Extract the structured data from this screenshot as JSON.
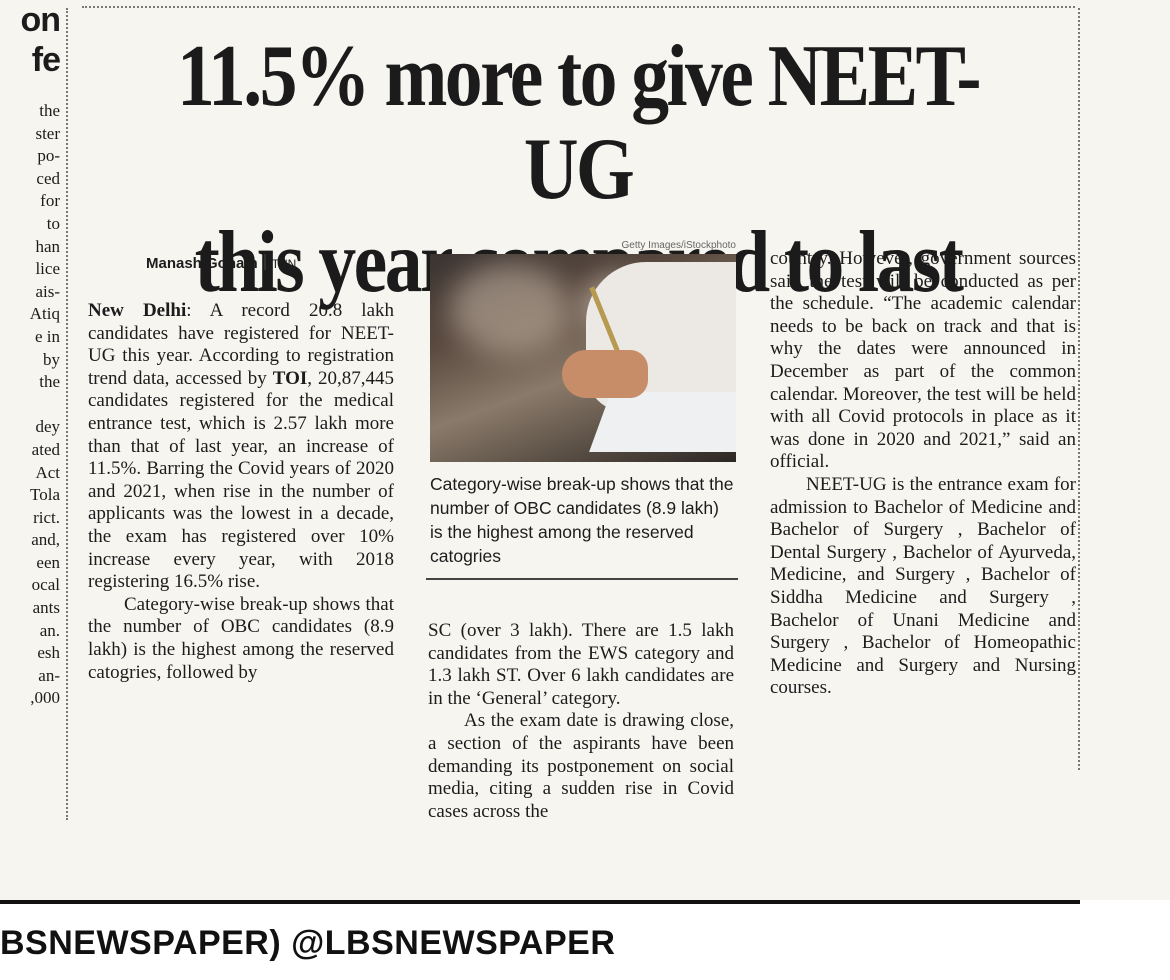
{
  "headline": {
    "line1": "11.5% more to give NEET-UG",
    "line2": "this year compared to last"
  },
  "byline": {
    "author": "Manash Gohain",
    "agency": "TNN"
  },
  "photo": {
    "credit": "Getty Images/iStockphoto"
  },
  "caption": "Category-wise break-up shows that the number of OBC candidates (8.9 lakh) is the highest among the reserved catogries",
  "left_strip": {
    "headline_fragments": [
      "on",
      "fe"
    ],
    "lines": [
      "the",
      "ster",
      "po-",
      "ced",
      "for",
      "to",
      "han",
      "lice",
      "ais-",
      "Atiq",
      "e in",
      "by",
      "the",
      "",
      "dey",
      "ated",
      "Act",
      "Tola",
      "rict.",
      "and,",
      "een",
      "ocal",
      "ants",
      "an.",
      "esh",
      "an-",
      ",000"
    ]
  },
  "body": {
    "col1": {
      "dateline": "New Delhi",
      "para1": ": A record 20.8 lakh candidates have registered for NEET-UG this year. According to registration trend data, accessed by",
      "source": "TOI",
      "para1b": ", 20,87,445 candidates registered for the medical entrance test, which is 2.57 lakh more than that of last year, an increase of 11.5%. Barring the Covid years of 2020 and 2021, when rise in the number of applicants was the lowest in a decade, the exam has registered over 10% increase every year, with 2018 registering 16.5% rise.",
      "para2": "Category-wise break-up shows that the number of OBC candidates (8.9 lakh) is the highest among the reserved catogries, followed by"
    },
    "col2": {
      "para1": "SC (over 3 lakh). There are 1.5 lakh candidates from the EWS category and 1.3 lakh ST. Over 6 lakh candidates are in the ‘General’ category.",
      "para2": "As the exam date is drawing close, a section of the aspirants have been demanding its postponement on social media, citing a sudden rise in Covid cases across the"
    },
    "col3": {
      "para1": "country. However, government sources said the test will be conducted as per the schedule. “The academic calendar needs to be back on track and that is why the dates were announced in December as part of the common calendar. Moreover, the test will be held with all Covid protocols in place as it was done in 2020 and 2021,” said an official.",
      "para2": "NEET-UG is the entrance exam for admission to Bachelor of Medicine and Bachelor of Surgery , Bachelor of Dental Surgery , Bachelor of Ayurveda, Medicine, and Surgery , Bachelor of Siddha Medicine and Surgery , Bachelor of Unani Medicine and Surgery , Bachelor of Homeopathic Medicine and Surgery and Nursing courses."
    }
  },
  "footer": {
    "watermark": "BSNEWSPAPER) @LBSNEWSPAPER"
  }
}
